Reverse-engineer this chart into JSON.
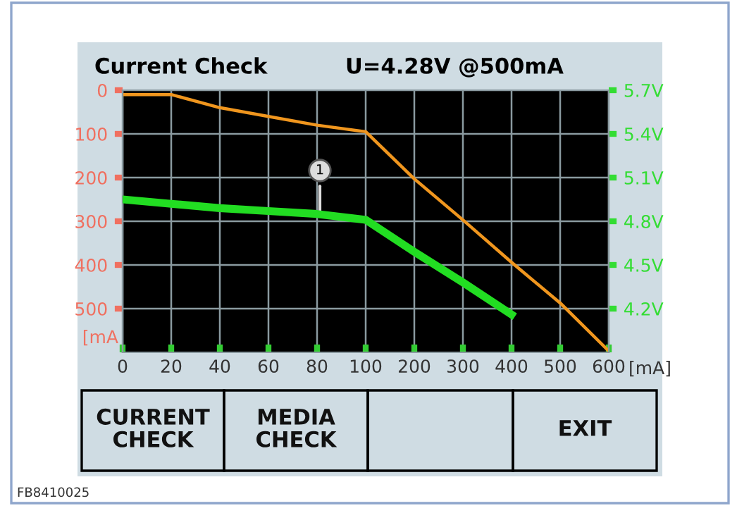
{
  "chart_data": {
    "type": "line",
    "title": "Current Check",
    "subtitle": "U=4.28V @500mA",
    "xlabel": "[mA]",
    "ylabel": "[mA",
    "categories": [
      "0",
      "20",
      "40",
      "60",
      "80",
      "100",
      "200",
      "300",
      "400",
      "500",
      "600"
    ],
    "series": [
      {
        "color": "#f0961e",
        "values": [
          10,
          10,
          40,
          60,
          80,
          95,
          203,
          297,
          394,
          487,
          597
        ]
      },
      {
        "color": "#22dd22",
        "axis": "y2",
        "values": [
          4.95,
          4.92,
          4.89,
          4.87,
          4.85,
          4.81,
          4.59,
          4.38,
          4.16,
          null,
          null
        ]
      }
    ],
    "ylim": [
      600,
      0
    ],
    "yticks": [
      0,
      100,
      200,
      300,
      400,
      500
    ],
    "y2lim": [
      3.9,
      5.7
    ],
    "y2ticks": [
      {
        "value": 4.2,
        "label": "4.2V"
      },
      {
        "value": 4.5,
        "label": "4.5V"
      },
      {
        "value": 4.8,
        "label": "4.8V"
      },
      {
        "value": 5.1,
        "label": "5.1V"
      },
      {
        "value": 5.4,
        "label": "5.4V"
      },
      {
        "value": 5.7,
        "label": "5.7V"
      }
    ],
    "grid": true,
    "annotations": [
      "1",
      "CURRENT CHECK",
      "MEDIA CHECK",
      "EXIT",
      "FB8410025"
    ]
  }
}
